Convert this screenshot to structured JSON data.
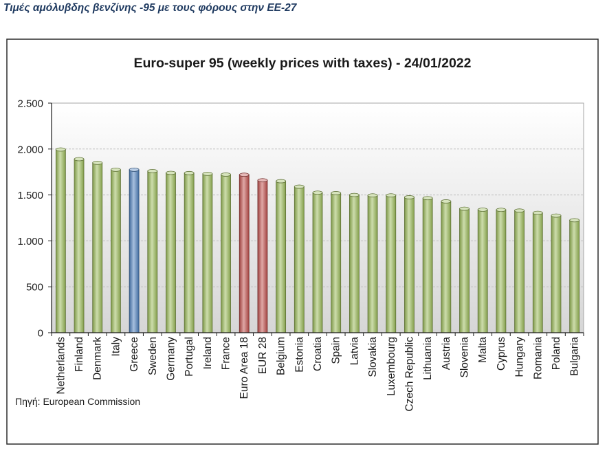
{
  "page": {
    "heading": "Τιμές αμόλυβδης βενζίνης -95 με τους φόρους στην ΕΕ-27",
    "heading_color": "#1F3A60"
  },
  "chart_data": {
    "type": "bar",
    "title": "Euro-super 95 (weekly prices with taxes) - 24/01/2022",
    "xlabel": "",
    "ylabel": "",
    "categories": [
      "Netherlands",
      "Finland",
      "Denmark",
      "Italy",
      "Greece",
      "Sweden",
      "Germany",
      "Portugal",
      "Ireland",
      "France",
      "Euro Area 18",
      "EUR 28",
      "Belgium",
      "Estonia",
      "Croatia",
      "Spain",
      "Latvia",
      "Slovakia",
      "Luxembourg",
      "Czech Republic",
      "Lithuania",
      "Austria",
      "Slovenia",
      "Malta",
      "Cyprus",
      "Hungary",
      "Romania",
      "Poland",
      "Bulgaria"
    ],
    "values": [
      1995,
      1890,
      1850,
      1775,
      1775,
      1760,
      1740,
      1738,
      1730,
      1722,
      1720,
      1660,
      1650,
      1590,
      1525,
      1520,
      1500,
      1495,
      1495,
      1475,
      1465,
      1430,
      1350,
      1340,
      1338,
      1330,
      1305,
      1275,
      1225
    ],
    "ylim": [
      0,
      2500
    ],
    "yticks": [
      0,
      500,
      1000,
      1500,
      2000,
      2500
    ],
    "ytick_labels": [
      "0",
      "500",
      "1.000",
      "1.500",
      "2.000",
      "2.500"
    ],
    "grid": true,
    "legend": "none",
    "colors": {
      "default": "#9BBB59",
      "highlight": {
        "Greece": "#4F81BD",
        "Euro Area 18": "#C0504D",
        "EUR 28": "#C0504D"
      }
    },
    "source": "Πηγή: European Commission"
  }
}
